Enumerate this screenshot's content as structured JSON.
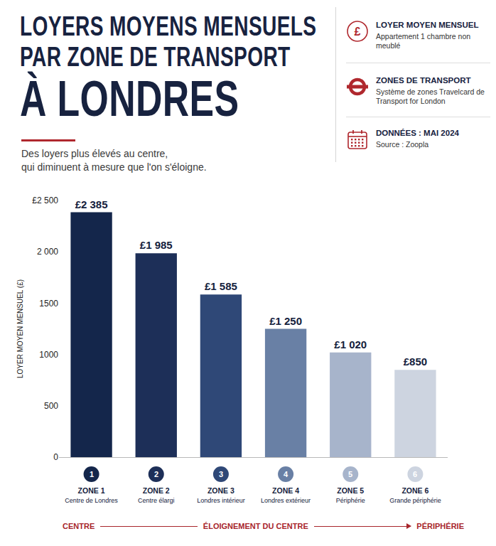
{
  "chart_data": {
    "type": "bar",
    "title": [
      "LOYERS MOYENS MENSUELS",
      "PAR ZONE DE TRANSPORT",
      "À LONDRES"
    ],
    "subtitle": [
      "Des loyers plus élevés au centre,",
      "qui diminuent à mesure que l'on s'éloigne."
    ],
    "info": [
      {
        "symbol": "£",
        "heading": "LOYER MOYEN MENSUEL",
        "text": "Appartement 1 chambre non meublé"
      },
      {
        "heading": "ZONES DE TRANSPORT",
        "text": "Système de zones Travelcard de Transport for London"
      },
      {
        "heading": "DONNÉES : MAI 2024",
        "text": "Source : Zoopla"
      }
    ],
    "y_label": "LOYER MOYEN MENSUEL (£)",
    "categories": [
      "ZONE 1",
      "ZONE 2",
      "ZONE 3",
      "ZONE 4",
      "ZONE 5",
      "ZONE 6"
    ],
    "category_numbers": [
      1,
      2,
      3,
      4,
      5,
      6
    ],
    "category_descriptions": [
      "Centre de Londres",
      "Centre élargi",
      "Londres intérieur",
      "Londres extérieur",
      "Périphérie",
      "Grande périphérie"
    ],
    "values": [
      2385,
      1985,
      1585,
      1250,
      1020,
      850
    ],
    "value_labels": [
      "£2 385",
      "£1 985",
      "£1 585",
      "£1 250",
      "£1 020",
      "£850"
    ],
    "colors": [
      "#14264b",
      "#1d2f58",
      "#2f4877",
      "#6980a5",
      "#a7b4cb",
      "#cdd4e0"
    ],
    "data_labels": true,
    "ylim": [
      0,
      2500
    ],
    "yticks": [
      0,
      500,
      1000,
      1500,
      {
        "value": 2000,
        "label": "2 000"
      },
      {
        "value": 2500,
        "label": "£2 500"
      }
    ],
    "grid": false,
    "direction": {
      "left": "CENTRE",
      "middle": "ÉLOIGNEMENT DU CENTRE",
      "right": "PÉRIPHÉRIE"
    }
  }
}
